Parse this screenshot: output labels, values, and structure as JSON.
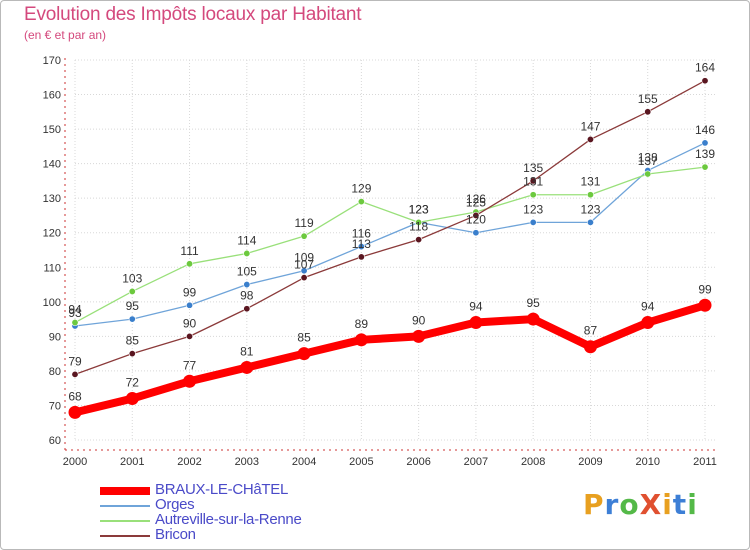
{
  "title": "Evolution des Impôts locaux par Habitant",
  "subtitle": "(en € et par an)",
  "logo": {
    "text": "ProXiti",
    "colors": [
      "#e8a020",
      "#3d7fd6",
      "#54b948",
      "#e05030",
      "#e8a020",
      "#3d7fd6",
      "#54b948"
    ]
  },
  "chart_data": {
    "type": "line",
    "title": "Evolution des Impôts locaux par Habitant",
    "subtitle": "(en € et par an)",
    "xlabel": "",
    "ylabel": "",
    "x": [
      "2000",
      "2001",
      "2002",
      "2003",
      "2004",
      "2005",
      "2006",
      "2007",
      "2008",
      "2009",
      "2010",
      "2011"
    ],
    "ylim": [
      60,
      170
    ],
    "yticks": [
      60,
      70,
      80,
      90,
      100,
      110,
      120,
      130,
      140,
      150,
      160,
      170
    ],
    "grid": true,
    "legend_position": "bottom-left",
    "series": [
      {
        "name": "BRAUX-LE-CHâTEL",
        "color": "#ff0000",
        "marker": "#ff0000",
        "emphasis": true,
        "values": [
          68,
          72,
          77,
          81,
          85,
          89,
          90,
          94,
          95,
          87,
          94,
          99
        ]
      },
      {
        "name": "Orges",
        "color": "#6fa4d9",
        "marker": "#3a7fcc",
        "values": [
          93,
          95,
          99,
          105,
          109,
          116,
          123,
          120,
          123,
          123,
          138,
          146
        ]
      },
      {
        "name": "Autreville-sur-la-Renne",
        "color": "#99e07a",
        "marker": "#6cc93e",
        "values": [
          94,
          103,
          111,
          114,
          119,
          129,
          123,
          126,
          131,
          131,
          137,
          139
        ]
      },
      {
        "name": "Bricon",
        "color": "#8b3a3a",
        "marker": "#5a1620",
        "values": [
          79,
          85,
          90,
          98,
          107,
          113,
          118,
          125,
          135,
          147,
          155,
          164
        ]
      }
    ]
  }
}
